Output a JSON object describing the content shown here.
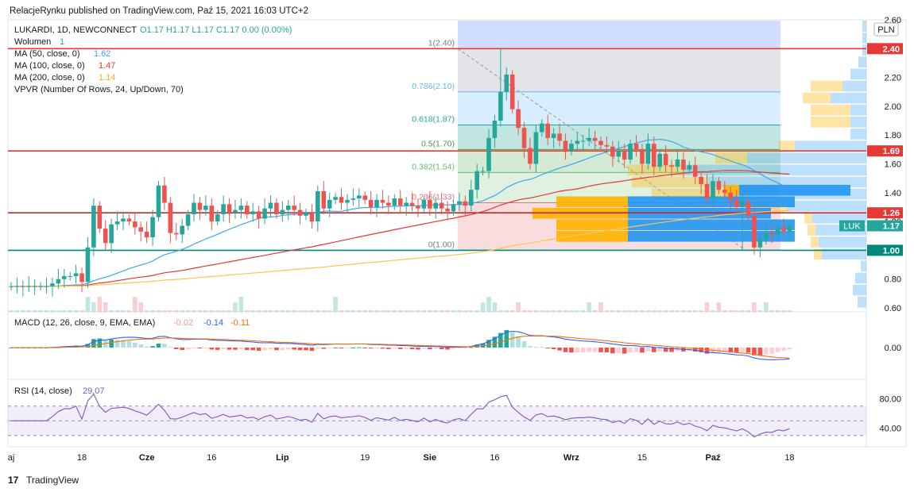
{
  "header": {
    "published": "RelacjeRynku published on TradingView.com, Paź 15, 2021 16:03 UTC+2"
  },
  "legend": {
    "symbol": "LUKARDI, 1D, NEWCONNECT",
    "ohlc": "O1.17  H1.17  L1.17  C1.17  0.00 (0.00%)",
    "volume_label": "Wolumen",
    "volume_value": "1",
    "ma50_label": "MA (50, close, 0)",
    "ma50_value": "1.62",
    "ma100_label": "MA (100, close, 0)",
    "ma100_value": "1.47",
    "ma200_label": "MA (200, close, 0)",
    "ma200_value": "1.14",
    "vpvr_label": "VPVR (Number Of Rows, 24, Up/Down, 70)"
  },
  "colors": {
    "up": "#26a69a",
    "down": "#ef5350",
    "ma50": "#42a5f5",
    "ma100": "#e53935",
    "ma200": "#f9c74f",
    "macd": "#2962ff",
    "signal": "#ff6d00",
    "rsi": "#7e57c2",
    "hline_red": "#e53935",
    "hline_teal": "#00897b"
  },
  "price_axis": {
    "currency": "PLN",
    "ticks": [
      "2.60",
      "2.40",
      "2.20",
      "2.00",
      "1.80",
      "1.60",
      "1.40",
      "1.20",
      "1.00",
      "0.80",
      "0.60"
    ],
    "tick_values": [
      2.6,
      2.4,
      2.2,
      2.0,
      1.8,
      1.6,
      1.4,
      1.2,
      1.0,
      0.8,
      0.6
    ],
    "labels": [
      {
        "text": "2.40",
        "value": 2.4,
        "color": "#e53935"
      },
      {
        "text": "1.69",
        "value": 1.69,
        "color": "#e53935"
      },
      {
        "text": "1.26",
        "value": 1.26,
        "color": "#e53935"
      },
      {
        "text": "1.17",
        "value": 1.17,
        "color": "#26a69a",
        "tag": "LUK"
      },
      {
        "text": "1.00",
        "value": 1.0,
        "color": "#00897b"
      }
    ]
  },
  "horizontal_lines": [
    {
      "value": 2.4,
      "color": "#e53935"
    },
    {
      "value": 1.69,
      "color": "#e53935"
    },
    {
      "value": 1.26,
      "color": "#c62828"
    },
    {
      "value": 1.0,
      "color": "#00897b"
    }
  ],
  "fib": {
    "levels": [
      {
        "label": "1(2.40)",
        "value": 2.4,
        "color": "#787b86"
      },
      {
        "label": "0.786(2.10)",
        "value": 2.1,
        "color": "#64b5f6"
      },
      {
        "label": "0.618(1.87)",
        "value": 1.87,
        "color": "#26a69a"
      },
      {
        "label": "0.5(1.70)",
        "value": 1.7,
        "color": "#43a047"
      },
      {
        "label": "0.382(1.54)",
        "value": 1.54,
        "color": "#66bb6a"
      },
      {
        "label": "0.236(1.33)",
        "value": 1.33,
        "color": "#e57373"
      },
      {
        "label": "0(1.00)",
        "value": 1.0,
        "color": "#787b86"
      }
    ]
  },
  "time_axis": {
    "labels": [
      {
        "text": "aj",
        "bar": 0
      },
      {
        "text": "18",
        "bar": 12
      },
      {
        "text": "Cze",
        "bar": 23
      },
      {
        "text": "16",
        "bar": 34
      },
      {
        "text": "Lip",
        "bar": 46
      },
      {
        "text": "19",
        "bar": 60
      },
      {
        "text": "Sie",
        "bar": 71
      },
      {
        "text": "16",
        "bar": 82
      },
      {
        "text": "Wrz",
        "bar": 95
      },
      {
        "text": "15",
        "bar": 107
      },
      {
        "text": "Paź",
        "bar": 119
      },
      {
        "text": "18",
        "bar": 132
      }
    ]
  },
  "macd": {
    "label": "MACD (12, 26, close, 9, EMA, EMA)",
    "hist_value": "-0.02",
    "macd_value": "-0.14",
    "signal_value": "-0.11",
    "ticks": [
      "0.00"
    ]
  },
  "rsi": {
    "label": "RSI (14, close)",
    "value": "29.07",
    "ticks": [
      "80.00",
      "40.00"
    ],
    "tick_values": [
      80,
      40
    ]
  },
  "logo": {
    "mark": "17",
    "text": "TradingView"
  },
  "chart_data": {
    "type": "candlestick",
    "title": "LUKARDI, 1D, NEWCONNECT",
    "ylim": [
      0.6,
      2.6
    ],
    "close": [
      0.75,
      0.75,
      0.75,
      0.75,
      0.75,
      0.75,
      0.75,
      0.77,
      0.8,
      0.82,
      0.82,
      0.84,
      0.78,
      1.02,
      1.31,
      1.15,
      1.05,
      1.18,
      1.2,
      1.22,
      1.2,
      1.16,
      1.13,
      1.09,
      1.23,
      1.45,
      1.33,
      1.12,
      1.11,
      1.17,
      1.25,
      1.33,
      1.28,
      1.31,
      1.2,
      1.25,
      1.32,
      1.26,
      1.28,
      1.31,
      1.25,
      1.27,
      1.22,
      1.29,
      1.33,
      1.25,
      1.28,
      1.31,
      1.28,
      1.24,
      1.26,
      1.2,
      1.41,
      1.29,
      1.35,
      1.37,
      1.33,
      1.35,
      1.36,
      1.38,
      1.35,
      1.3,
      1.35,
      1.33,
      1.31,
      1.36,
      1.31,
      1.33,
      1.31,
      1.29,
      1.35,
      1.29,
      1.33,
      1.29,
      1.27,
      1.32,
      1.34,
      1.31,
      1.42,
      1.55,
      1.55,
      1.78,
      1.9,
      2.1,
      2.22,
      1.98,
      1.85,
      1.71,
      1.6,
      1.82,
      1.88,
      1.78,
      1.81,
      1.76,
      1.69,
      1.74,
      1.76,
      1.76,
      1.78,
      1.76,
      1.73,
      1.72,
      1.65,
      1.69,
      1.63,
      1.74,
      1.7,
      1.6,
      1.74,
      1.58,
      1.67,
      1.59,
      1.58,
      1.63,
      1.56,
      1.59,
      1.51,
      1.46,
      1.36,
      1.48,
      1.42,
      1.4,
      1.35,
      1.3,
      1.34,
      1.24,
      1.02,
      1.08,
      1.12,
      1.11,
      1.16,
      1.13,
      1.17
    ],
    "series": [
      {
        "name": "MA (50, close, 0)",
        "last": 1.62
      },
      {
        "name": "MA (100, close, 0)",
        "last": 1.47
      },
      {
        "name": "MA (200, close, 0)",
        "last": 1.14
      }
    ]
  }
}
